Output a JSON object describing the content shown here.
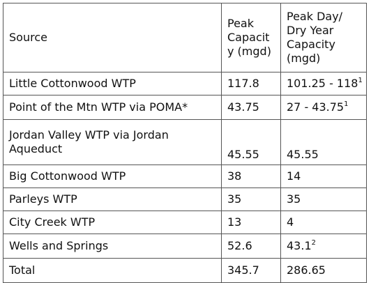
{
  "table": {
    "headers": {
      "source": "Source",
      "peak": "Peak\nCapacit\ny (mgd)",
      "dry": "Peak Day/\nDry Year\nCapacity\n(mgd)"
    },
    "rows": [
      {
        "source": "Little Cottonwood WTP",
        "peak": "117.8",
        "dry": "101.25 - 118",
        "dry_sup": "1"
      },
      {
        "source": "Point of the Mtn WTP via POMA*",
        "peak": "43.75",
        "dry": "27 - 43.75",
        "dry_sup": "1"
      },
      {
        "source": "Jordan Valley WTP via Jordan\nAqueduct",
        "peak": "45.55",
        "dry": "45.55",
        "dry_sup": ""
      },
      {
        "source": "Big Cottonwood WTP",
        "peak": "38",
        "dry": "14",
        "dry_sup": ""
      },
      {
        "source": "Parleys WTP",
        "peak": "35",
        "dry": "35",
        "dry_sup": ""
      },
      {
        "source": "City Creek WTP",
        "peak": "13",
        "dry": "4",
        "dry_sup": ""
      },
      {
        "source": "Wells and Springs",
        "peak": "52.6",
        "dry": "43.1",
        "dry_sup": "2"
      },
      {
        "source": "Total",
        "peak": "345.7",
        "dry": "286.65",
        "dry_sup": ""
      }
    ]
  }
}
